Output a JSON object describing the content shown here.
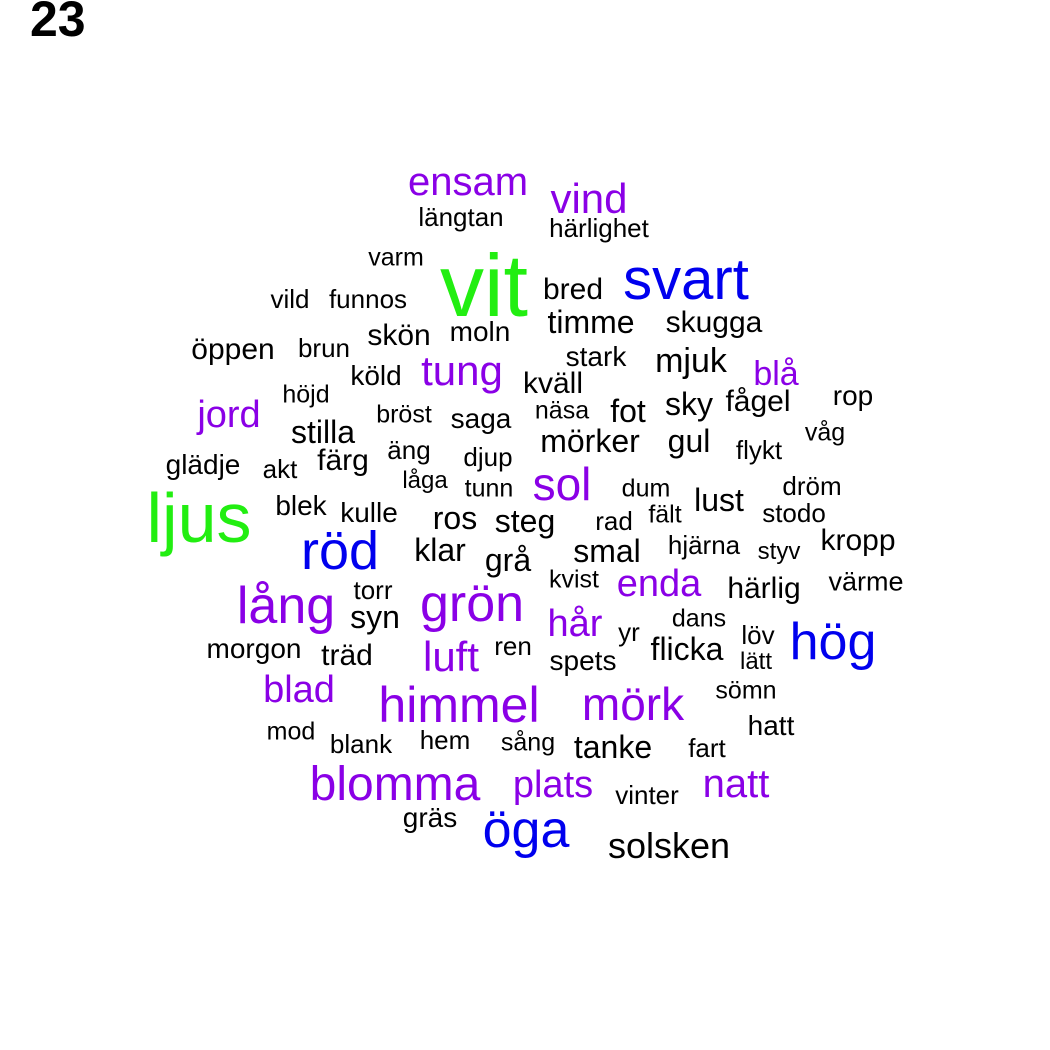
{
  "panel_label": "23",
  "colors": {
    "black": "#000000",
    "purple": "#8a00e6",
    "blue": "#0000ee",
    "green": "#22ee11"
  },
  "words": [
    {
      "text": "vit",
      "color": "green"
    },
    {
      "text": "ljus",
      "color": "green"
    },
    {
      "text": "svart",
      "color": "blue"
    },
    {
      "text": "röd",
      "color": "blue"
    },
    {
      "text": "hög",
      "color": "blue"
    },
    {
      "text": "öga",
      "color": "blue"
    },
    {
      "text": "ensam",
      "color": "purple"
    },
    {
      "text": "vind",
      "color": "purple"
    },
    {
      "text": "tung",
      "color": "purple"
    },
    {
      "text": "blå",
      "color": "purple"
    },
    {
      "text": "jord",
      "color": "purple"
    },
    {
      "text": "sol",
      "color": "purple"
    },
    {
      "text": "lång",
      "color": "purple"
    },
    {
      "text": "grön",
      "color": "purple"
    },
    {
      "text": "enda",
      "color": "purple"
    },
    {
      "text": "hår",
      "color": "purple"
    },
    {
      "text": "luft",
      "color": "purple"
    },
    {
      "text": "blad",
      "color": "purple"
    },
    {
      "text": "himmel",
      "color": "purple"
    },
    {
      "text": "mörk",
      "color": "purple"
    },
    {
      "text": "blomma",
      "color": "purple"
    },
    {
      "text": "plats",
      "color": "purple"
    },
    {
      "text": "natt",
      "color": "purple"
    },
    {
      "text": "längtan",
      "color": "black"
    },
    {
      "text": "härlighet",
      "color": "black"
    },
    {
      "text": "varm",
      "color": "black"
    },
    {
      "text": "bred",
      "color": "black"
    },
    {
      "text": "vild",
      "color": "black"
    },
    {
      "text": "funnos",
      "color": "black"
    },
    {
      "text": "timme",
      "color": "black"
    },
    {
      "text": "skugga",
      "color": "black"
    },
    {
      "text": "öppen",
      "color": "black"
    },
    {
      "text": "brun",
      "color": "black"
    },
    {
      "text": "skön",
      "color": "black"
    },
    {
      "text": "moln",
      "color": "black"
    },
    {
      "text": "stark",
      "color": "black"
    },
    {
      "text": "mjuk",
      "color": "black"
    },
    {
      "text": "köld",
      "color": "black"
    },
    {
      "text": "kväll",
      "color": "black"
    },
    {
      "text": "höjd",
      "color": "black"
    },
    {
      "text": "rop",
      "color": "black"
    },
    {
      "text": "fågel",
      "color": "black"
    },
    {
      "text": "sky",
      "color": "black"
    },
    {
      "text": "bröst",
      "color": "black"
    },
    {
      "text": "saga",
      "color": "black"
    },
    {
      "text": "näsa",
      "color": "black"
    },
    {
      "text": "fot",
      "color": "black"
    },
    {
      "text": "stilla",
      "color": "black"
    },
    {
      "text": "mörker",
      "color": "black"
    },
    {
      "text": "gul",
      "color": "black"
    },
    {
      "text": "flykt",
      "color": "black"
    },
    {
      "text": "våg",
      "color": "black"
    },
    {
      "text": "glädje",
      "color": "black"
    },
    {
      "text": "akt",
      "color": "black"
    },
    {
      "text": "färg",
      "color": "black"
    },
    {
      "text": "äng",
      "color": "black"
    },
    {
      "text": "djup",
      "color": "black"
    },
    {
      "text": "låga",
      "color": "black"
    },
    {
      "text": "tunn",
      "color": "black"
    },
    {
      "text": "dum",
      "color": "black"
    },
    {
      "text": "dröm",
      "color": "black"
    },
    {
      "text": "lust",
      "color": "black"
    },
    {
      "text": "blek",
      "color": "black"
    },
    {
      "text": "kulle",
      "color": "black"
    },
    {
      "text": "ros",
      "color": "black"
    },
    {
      "text": "steg",
      "color": "black"
    },
    {
      "text": "rad",
      "color": "black"
    },
    {
      "text": "fält",
      "color": "black"
    },
    {
      "text": "stodo",
      "color": "black"
    },
    {
      "text": "klar",
      "color": "black"
    },
    {
      "text": "grå",
      "color": "black"
    },
    {
      "text": "smal",
      "color": "black"
    },
    {
      "text": "hjärna",
      "color": "black"
    },
    {
      "text": "styv",
      "color": "black"
    },
    {
      "text": "kropp",
      "color": "black"
    },
    {
      "text": "torr",
      "color": "black"
    },
    {
      "text": "kvist",
      "color": "black"
    },
    {
      "text": "härlig",
      "color": "black"
    },
    {
      "text": "värme",
      "color": "black"
    },
    {
      "text": "syn",
      "color": "black"
    },
    {
      "text": "dans",
      "color": "black"
    },
    {
      "text": "yr",
      "color": "black"
    },
    {
      "text": "löv",
      "color": "black"
    },
    {
      "text": "morgon",
      "color": "black"
    },
    {
      "text": "träd",
      "color": "black"
    },
    {
      "text": "ren",
      "color": "black"
    },
    {
      "text": "flicka",
      "color": "black"
    },
    {
      "text": "spets",
      "color": "black"
    },
    {
      "text": "lätt",
      "color": "black"
    },
    {
      "text": "sömn",
      "color": "black"
    },
    {
      "text": "hatt",
      "color": "black"
    },
    {
      "text": "mod",
      "color": "black"
    },
    {
      "text": "blank",
      "color": "black"
    },
    {
      "text": "hem",
      "color": "black"
    },
    {
      "text": "sång",
      "color": "black"
    },
    {
      "text": "tanke",
      "color": "black"
    },
    {
      "text": "fart",
      "color": "black"
    },
    {
      "text": "vinter",
      "color": "black"
    },
    {
      "text": "gräs",
      "color": "black"
    },
    {
      "text": "solsken",
      "color": "black"
    }
  ]
}
